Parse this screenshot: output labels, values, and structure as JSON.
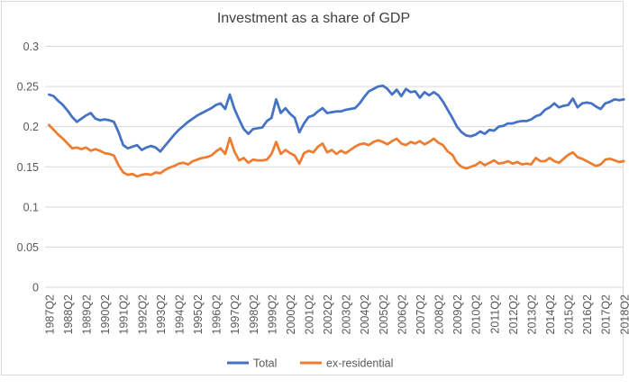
{
  "chart_data": {
    "type": "line",
    "title": "Investment as a share of GDP",
    "xlabel": "",
    "ylabel": "",
    "ylim": [
      0,
      0.3
    ],
    "grid": "horizontal",
    "legend_position": "bottom-center",
    "background": "#FFFFFF",
    "gridline_color": "#D9D9D9",
    "border_color": "#D9D9D9",
    "text_color": "#595959",
    "title_color": "#404040",
    "y_tick_labels": [
      "0.3",
      "0.25",
      "0.2",
      "0.15",
      "0.1",
      "0.05",
      "0"
    ],
    "y_tick_values": [
      0.3,
      0.25,
      0.2,
      0.15,
      0.1,
      0.05,
      0
    ],
    "x_tick_labels": [
      "1987Q2",
      "1988Q2",
      "1989Q2",
      "1990Q2",
      "1991Q2",
      "1992Q2",
      "1993Q2",
      "1994Q2",
      "1995Q2",
      "1996Q2",
      "1997Q2",
      "1998Q2",
      "1999Q2",
      "2000Q2",
      "2001Q2",
      "2002Q2",
      "2003Q2",
      "2004Q2",
      "2005Q2",
      "2006Q2",
      "2007Q2",
      "2008Q2",
      "2009Q2",
      "2010Q2",
      "2011Q2",
      "2012Q2",
      "2013Q2",
      "2014Q2",
      "2015Q2",
      "2016Q2",
      "2017Q2",
      "2018Q2"
    ],
    "x_start": "1987Q2",
    "x_end": "2018Q2",
    "frequency": "quarterly",
    "series": [
      {
        "name": "Total",
        "color": "#4472C4",
        "values": [
          0.24,
          0.238,
          0.232,
          0.227,
          0.22,
          0.212,
          0.206,
          0.21,
          0.214,
          0.217,
          0.21,
          0.208,
          0.209,
          0.208,
          0.206,
          0.193,
          0.177,
          0.173,
          0.175,
          0.177,
          0.171,
          0.174,
          0.176,
          0.174,
          0.169,
          0.176,
          0.183,
          0.19,
          0.196,
          0.201,
          0.206,
          0.21,
          0.214,
          0.217,
          0.22,
          0.223,
          0.227,
          0.229,
          0.222,
          0.24,
          0.222,
          0.209,
          0.197,
          0.191,
          0.197,
          0.198,
          0.199,
          0.207,
          0.211,
          0.234,
          0.217,
          0.223,
          0.216,
          0.211,
          0.193,
          0.204,
          0.212,
          0.214,
          0.219,
          0.223,
          0.217,
          0.218,
          0.219,
          0.219,
          0.221,
          0.222,
          0.223,
          0.229,
          0.237,
          0.244,
          0.247,
          0.25,
          0.251,
          0.247,
          0.24,
          0.246,
          0.238,
          0.247,
          0.243,
          0.244,
          0.236,
          0.243,
          0.239,
          0.243,
          0.239,
          0.231,
          0.221,
          0.211,
          0.2,
          0.193,
          0.189,
          0.188,
          0.19,
          0.194,
          0.191,
          0.196,
          0.195,
          0.2,
          0.201,
          0.204,
          0.204,
          0.206,
          0.207,
          0.207,
          0.209,
          0.213,
          0.215,
          0.221,
          0.224,
          0.229,
          0.224,
          0.226,
          0.227,
          0.235,
          0.224,
          0.229,
          0.23,
          0.229,
          0.225,
          0.222,
          0.229,
          0.231,
          0.234,
          0.233,
          0.234
        ]
      },
      {
        "name": "ex-residential",
        "color": "#ED7D31",
        "values": [
          0.202,
          0.196,
          0.19,
          0.185,
          0.179,
          0.173,
          0.174,
          0.172,
          0.174,
          0.17,
          0.172,
          0.17,
          0.167,
          0.166,
          0.164,
          0.152,
          0.143,
          0.14,
          0.141,
          0.138,
          0.14,
          0.141,
          0.14,
          0.143,
          0.142,
          0.146,
          0.149,
          0.151,
          0.154,
          0.155,
          0.153,
          0.157,
          0.159,
          0.161,
          0.162,
          0.164,
          0.169,
          0.173,
          0.166,
          0.186,
          0.169,
          0.158,
          0.161,
          0.155,
          0.159,
          0.158,
          0.158,
          0.159,
          0.166,
          0.181,
          0.166,
          0.171,
          0.167,
          0.164,
          0.154,
          0.167,
          0.17,
          0.168,
          0.175,
          0.179,
          0.168,
          0.171,
          0.166,
          0.17,
          0.167,
          0.171,
          0.175,
          0.178,
          0.179,
          0.177,
          0.181,
          0.183,
          0.181,
          0.178,
          0.182,
          0.185,
          0.179,
          0.177,
          0.181,
          0.179,
          0.182,
          0.178,
          0.181,
          0.185,
          0.18,
          0.177,
          0.169,
          0.165,
          0.155,
          0.15,
          0.148,
          0.15,
          0.152,
          0.156,
          0.152,
          0.155,
          0.158,
          0.154,
          0.155,
          0.157,
          0.154,
          0.156,
          0.153,
          0.154,
          0.153,
          0.161,
          0.157,
          0.157,
          0.161,
          0.157,
          0.155,
          0.16,
          0.165,
          0.168,
          0.162,
          0.16,
          0.157,
          0.154,
          0.151,
          0.153,
          0.159,
          0.16,
          0.158,
          0.156,
          0.157
        ]
      }
    ]
  }
}
